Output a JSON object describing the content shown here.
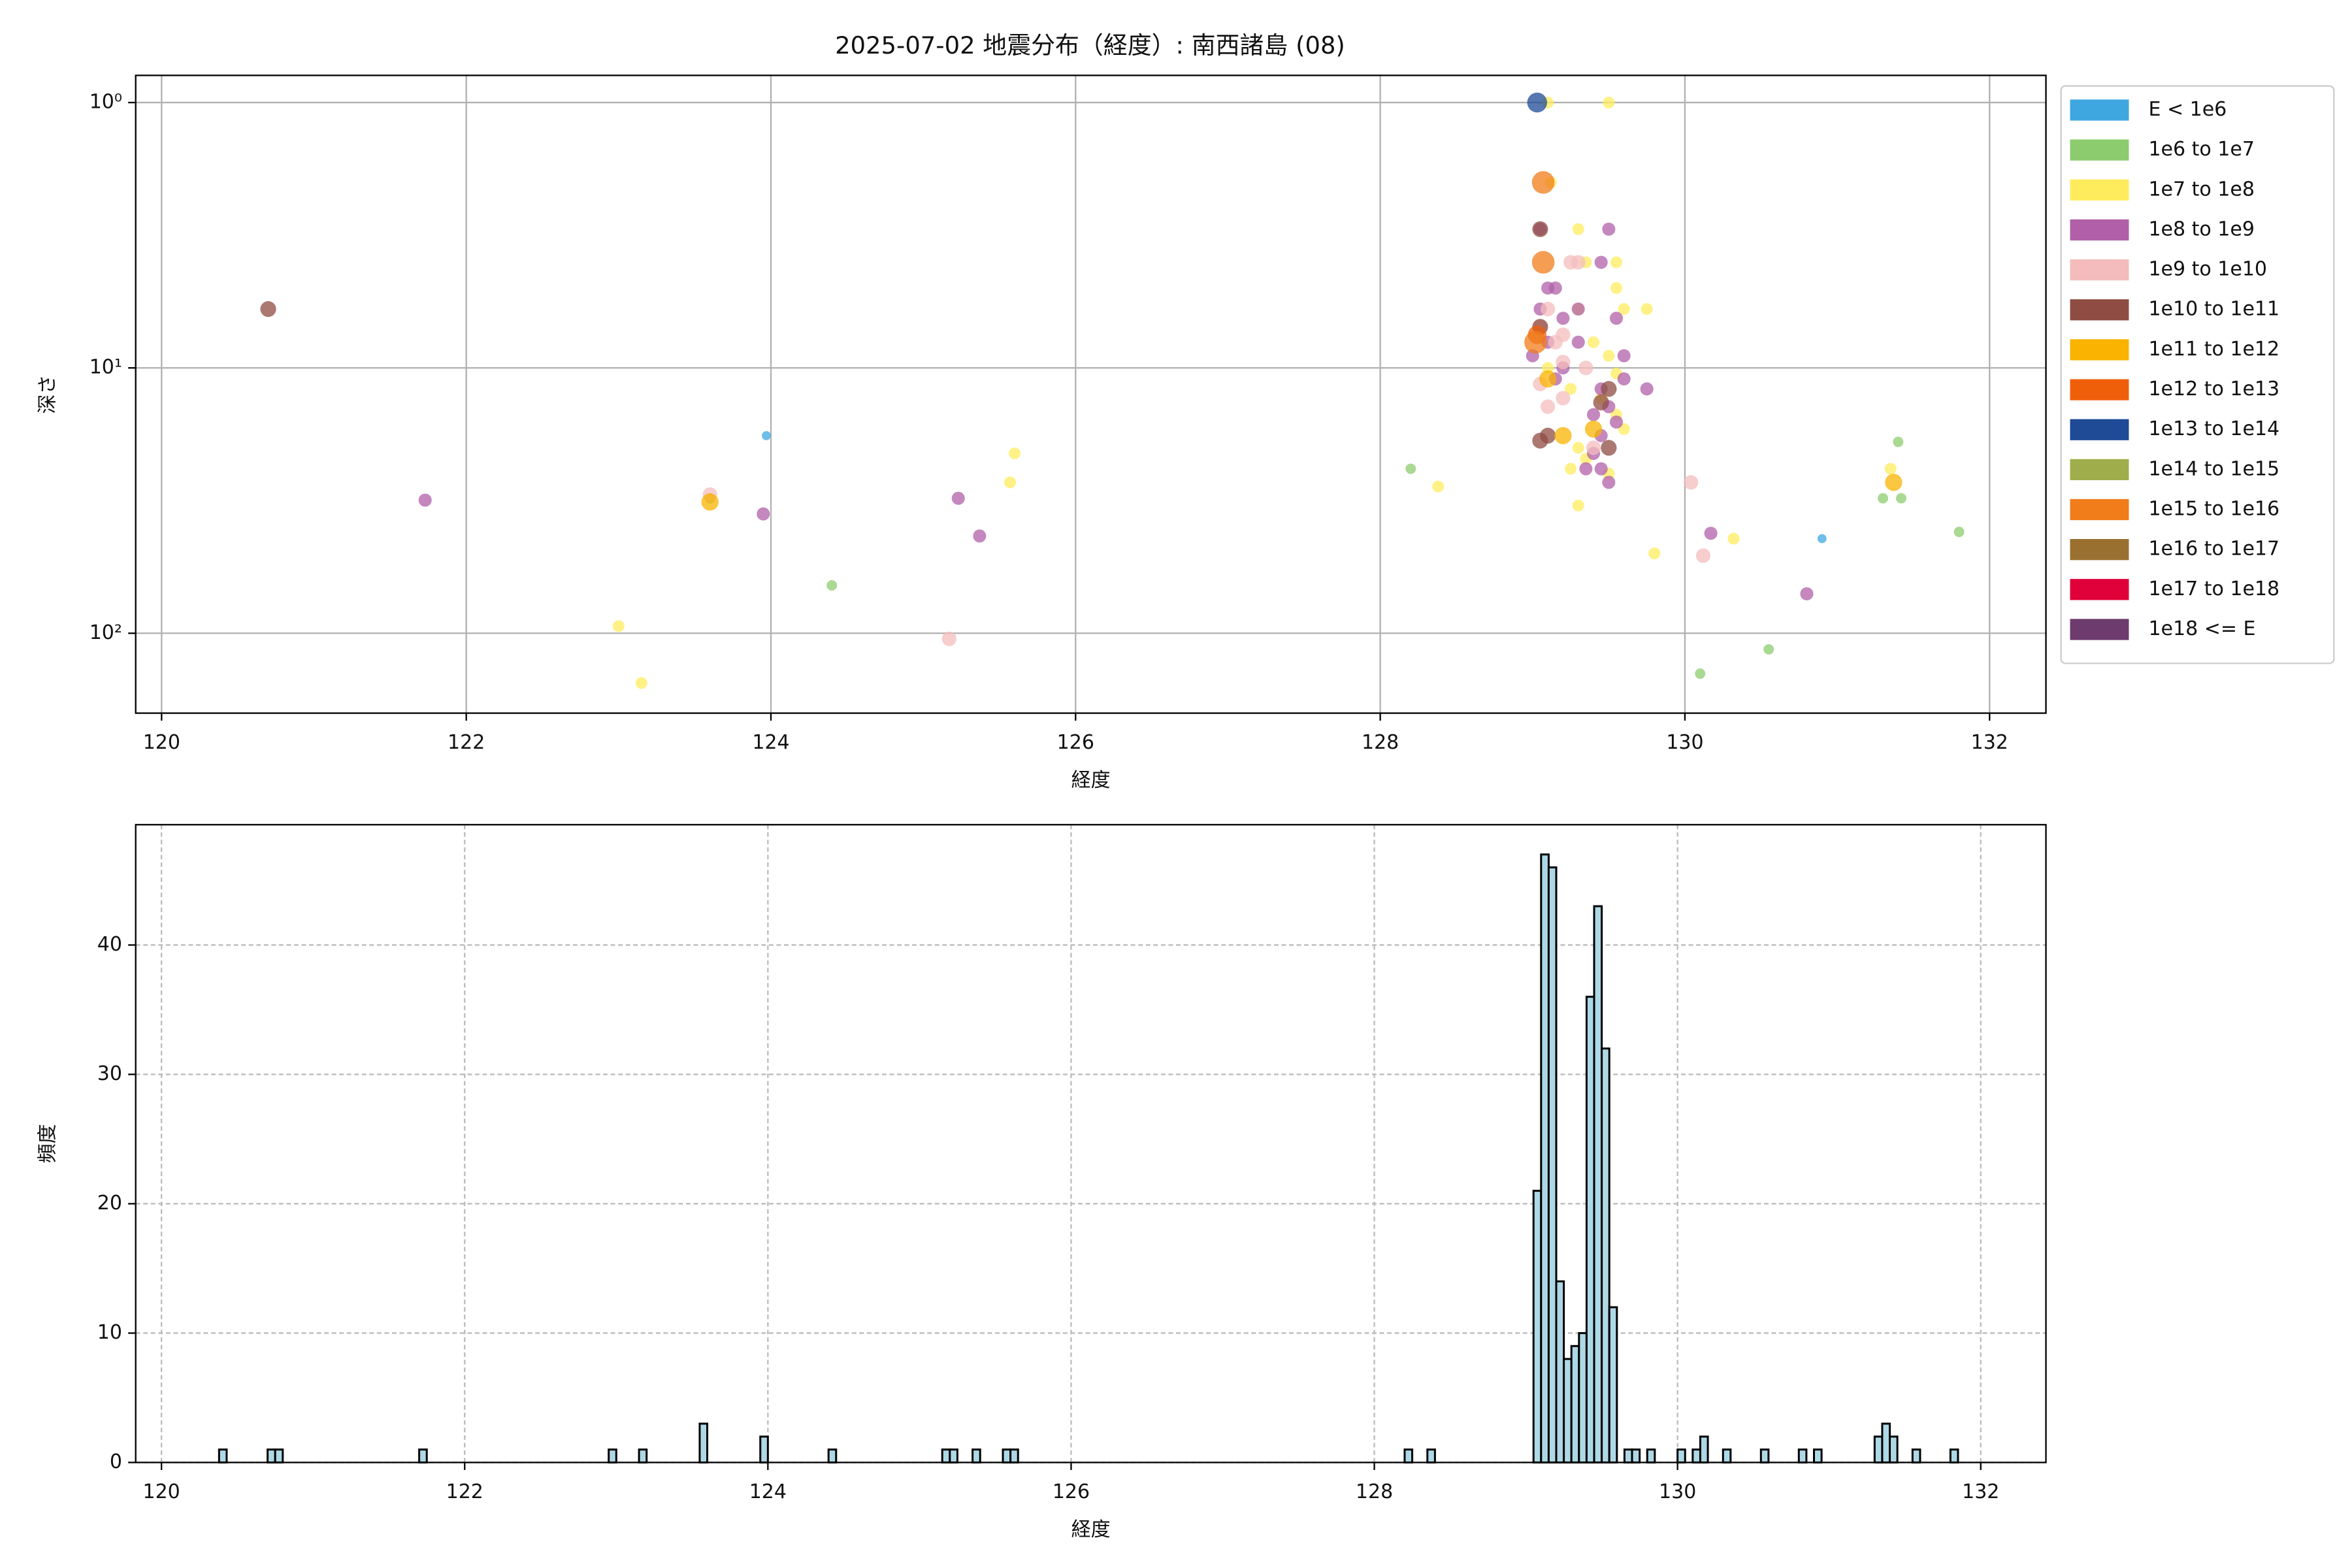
{
  "chart_data": [
    {
      "type": "scatter",
      "title": "2025-07-02 地震分布（経度）: 南西諸島 (08)",
      "xlabel": "経度",
      "ylabel": "深さ",
      "xlim": [
        119.83,
        132.37
      ],
      "xticks": [
        120,
        122,
        124,
        126,
        128,
        130,
        132
      ],
      "ylim": [
        0.79,
        200
      ],
      "log_y": true,
      "invert_y": true,
      "yticks": [
        {
          "value": 1,
          "label": "10⁰"
        },
        {
          "value": 10,
          "label": "10¹"
        },
        {
          "value": 100,
          "label": "10²"
        }
      ],
      "grid": true,
      "legend": "outside-right",
      "series": [
        {
          "name": "E < 1e6",
          "color": "#3fa7e0",
          "x": [
            123.97,
            130.9
          ],
          "y": [
            18,
            44
          ]
        },
        {
          "name": "1e6 to 1e7",
          "color": "#8ccc6e",
          "x": [
            123.6,
            124.4,
            128.2,
            130.1,
            130.55,
            131.3,
            131.4,
            131.42,
            131.8
          ],
          "y": [
            31,
            66,
            24,
            142,
            115,
            31,
            19,
            31,
            41.5
          ]
        },
        {
          "name": "1e7 to 1e8",
          "color": "#ffec5c",
          "x": [
            123.0,
            123.15,
            125.57,
            125.6,
            128.38,
            129.8,
            130.32,
            131.35,
            129.5,
            129.1,
            129.12,
            129.3,
            129.35,
            129.55,
            129.55,
            129.3,
            129.6,
            129.75,
            129.4,
            129.5,
            129.55,
            129.25,
            129.45,
            129.55,
            129.6,
            129.3,
            129.35,
            129.5,
            129.3,
            129.25,
            129.1
          ],
          "y": [
            94,
            154,
            27,
            21,
            28,
            50,
            44,
            24,
            1.0,
            1.0,
            2.0,
            3.0,
            4.0,
            4.0,
            5.0,
            6.0,
            6.0,
            6.0,
            8,
            9,
            10.5,
            12,
            13,
            15,
            17,
            20,
            22,
            25,
            33,
            24,
            10
          ]
        },
        {
          "name": "1e8 to 1e9",
          "color": "#b05fa8",
          "x": [
            121.73,
            123.95,
            125.23,
            125.37,
            130.17,
            130.8,
            129.05,
            129.5,
            129.1,
            129.15,
            129.05,
            129.2,
            129.1,
            129.3,
            129.0,
            129.2,
            129.15,
            129.45,
            129.5,
            129.4,
            129.6,
            129.75,
            129.45,
            129.55,
            129.4,
            129.45,
            129.5,
            129.35,
            129.3,
            129.45,
            129.55,
            129.6
          ],
          "y": [
            31.5,
            35.5,
            31,
            43,
            42,
            71,
            3.0,
            3.0,
            5.0,
            5.0,
            6.0,
            6.5,
            8,
            8,
            9,
            10,
            11,
            12,
            14,
            15,
            11,
            12,
            18,
            16,
            21,
            24,
            27,
            24,
            6,
            4,
            6.5,
            9
          ]
        },
        {
          "name": "1e9 to 1e10",
          "color": "#f4bcbc",
          "x": [
            125.17,
            130.04,
            130.12,
            123.6,
            129.25,
            129.3,
            129.1,
            129.05,
            129.15,
            129.2,
            129.05,
            129.1,
            129.2,
            129.35,
            129.4,
            129.2
          ],
          "y": [
            105,
            27,
            51,
            30,
            4.0,
            4.0,
            6.0,
            7.0,
            8,
            9.5,
            11.5,
            14,
            7.5,
            10,
            20,
            13
          ]
        },
        {
          "name": "1e10 to 1e11",
          "color": "#8f4c43",
          "x": [
            120.7,
            129.05,
            129.05,
            129.1,
            129.5,
            129.45,
            129.5,
            129.05
          ],
          "y": [
            6.0,
            3.0,
            18.8,
            18,
            12,
            13.5,
            20,
            7
          ]
        },
        {
          "name": "1e11 to 1e12",
          "color": "#f9b300",
          "x": [
            123.6,
            131.37,
            129.2,
            129.1,
            129.4
          ],
          "y": [
            32,
            27,
            18,
            11,
            17
          ]
        },
        {
          "name": "1e12 to 1e13",
          "color": "#ef5f0a",
          "x": [
            129.03
          ],
          "y": [
            7.5
          ]
        },
        {
          "name": "1e13 to 1e14",
          "color": "#1e4a96",
          "x": [
            129.03
          ],
          "y": [
            1.0
          ]
        },
        {
          "name": "1e14 to 1e15",
          "color": "#9fae4a",
          "x": [],
          "y": []
        },
        {
          "name": "1e15 to 1e16",
          "color": "#f07c1a",
          "x": [
            129.07,
            129.07,
            129.02
          ],
          "y": [
            2.0,
            4.0,
            8
          ]
        },
        {
          "name": "1e16 to 1e17",
          "color": "#9a7030",
          "x": [],
          "y": []
        },
        {
          "name": "1e17 to 1e18",
          "color": "#e0003a",
          "x": [],
          "y": []
        },
        {
          "name": "1e18 <= E",
          "color": "#6d3b6e",
          "x": [],
          "y": []
        }
      ]
    },
    {
      "type": "histogram",
      "xlabel": "経度",
      "ylabel": "頻度",
      "xlim": [
        119.83,
        132.43
      ],
      "xticks": [
        120,
        122,
        124,
        126,
        128,
        130,
        132
      ],
      "ylim": [
        0,
        49.3
      ],
      "yticks": [
        0,
        10,
        20,
        30,
        40
      ],
      "grid": true,
      "grid_style": "dashed",
      "color": "#add8e6",
      "edgecolor": "#000000",
      "bins": [
        120.38,
        120.43,
        120.7,
        120.75,
        120.8,
        121.7,
        121.75,
        122.95,
        123.0,
        123.15,
        123.2,
        123.55,
        123.6,
        123.95,
        124.0,
        124.4,
        124.45,
        125.15,
        125.2,
        125.25,
        125.35,
        125.4,
        125.55,
        125.6,
        125.65,
        128.2,
        128.25,
        128.35,
        128.4,
        129.05,
        129.1,
        129.15,
        129.2,
        129.25,
        129.3,
        129.35,
        129.4,
        129.45,
        129.5,
        129.55,
        129.6,
        129.65,
        129.7,
        129.75,
        129.8,
        129.85,
        130.0,
        130.05,
        130.1,
        130.15,
        130.2,
        130.3,
        130.35,
        130.55,
        130.6,
        130.8,
        130.85,
        130.9,
        130.95,
        131.3,
        131.35,
        131.4,
        131.45,
        131.55,
        131.6,
        131.8,
        131.85
      ],
      "counts": [
        1,
        0,
        1,
        1,
        0,
        1,
        0,
        1,
        0,
        1,
        0,
        3,
        0,
        2,
        0,
        1,
        0,
        1,
        1,
        0,
        1,
        0,
        1,
        1,
        0,
        1,
        0,
        1,
        0,
        21,
        47,
        46,
        14,
        8,
        9,
        10,
        36,
        43,
        32,
        12,
        0,
        1,
        1,
        0,
        1,
        0,
        1,
        0,
        1,
        2,
        0,
        1,
        0,
        1,
        0,
        1,
        0,
        1,
        0,
        2,
        3,
        2,
        0,
        1,
        0,
        1
      ]
    }
  ]
}
